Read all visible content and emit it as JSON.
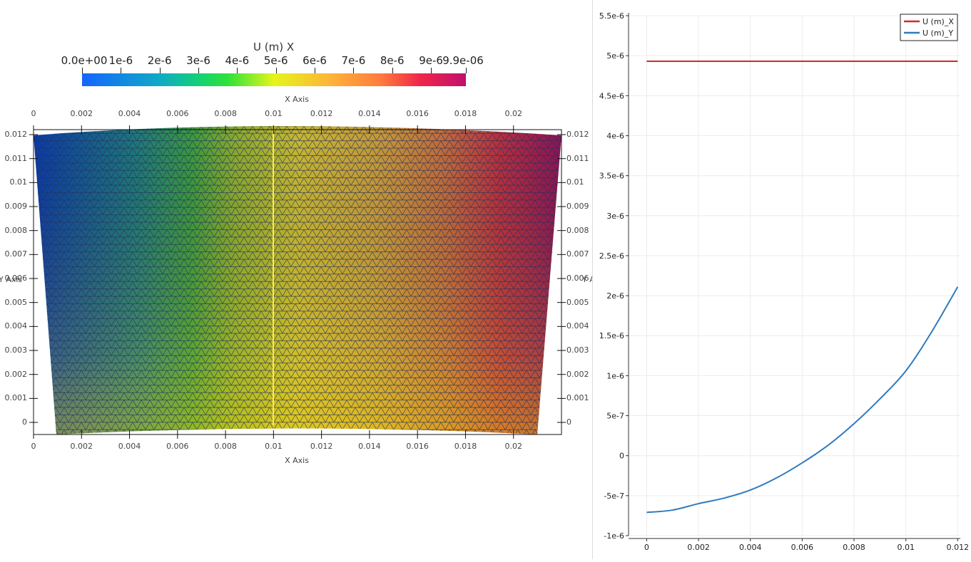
{
  "left_view": {
    "colorbar": {
      "title": "U (m) X",
      "tick_labels": [
        "0.0e+00",
        "1e-6",
        "2e-6",
        "3e-6",
        "4e-6",
        "5e-6",
        "6e-6",
        "7e-6",
        "8e-6",
        "9e-6",
        "9.9e-06"
      ],
      "colors": [
        "#1565ff",
        "#10a9c8",
        "#13d078",
        "#2ee23a",
        "#e5f51b",
        "#ffb13a",
        "#ff7a3c",
        "#f0264a",
        "#c0106e"
      ]
    },
    "x_axis_top_label": "X Axis",
    "x_axis_bottom_label": "X Axis",
    "y_axis_left_label": "Y Axis",
    "y_axis_right_label": "Y Axis",
    "x_ticks": [
      "0",
      "0.002",
      "0.004",
      "0.006",
      "0.008",
      "0.01",
      "0.012",
      "0.014",
      "0.016",
      "0.018",
      "0.02"
    ],
    "y_ticks": [
      "0",
      "0.001",
      "0.002",
      "0.003",
      "0.004",
      "0.005",
      "0.006",
      "0.007",
      "0.008",
      "0.009",
      "0.01",
      "0.011",
      "0.012"
    ]
  },
  "chart_data": {
    "type": "line",
    "x": [
      0,
      0.001,
      0.002,
      0.003,
      0.004,
      0.005,
      0.006,
      0.007,
      0.008,
      0.009,
      0.01,
      0.011,
      0.012
    ],
    "series": [
      {
        "name": "U (m)_X",
        "color": "#d62728",
        "values": [
          4.93e-06,
          4.93e-06,
          4.93e-06,
          4.93e-06,
          4.93e-06,
          4.93e-06,
          4.93e-06,
          4.93e-06,
          4.93e-06,
          4.93e-06,
          4.93e-06,
          4.93e-06,
          4.93e-06
        ]
      },
      {
        "name": "U (m)_Y",
        "color": "#2f7bbf",
        "values": [
          -7.1e-07,
          -6.8e-07,
          -6e-07,
          -5.3e-07,
          -4.3e-07,
          -2.8e-07,
          -9e-08,
          1.3e-07,
          4e-07,
          7.1e-07,
          1.06e-06,
          1.55e-06,
          2.11e-06
        ]
      }
    ],
    "x_ticks": [
      "0",
      "0.002",
      "0.004",
      "0.006",
      "0.008",
      "0.01",
      "0.012"
    ],
    "x_tick_values": [
      0,
      0.002,
      0.004,
      0.006,
      0.008,
      0.01,
      0.012
    ],
    "y_ticks": [
      "-1e-6",
      "-5e-7",
      "0",
      "5e-7",
      "1e-6",
      "1.5e-6",
      "2e-6",
      "2.5e-6",
      "3e-6",
      "3.5e-6",
      "4e-6",
      "4.5e-6",
      "5e-6",
      "5.5e-6"
    ],
    "y_tick_values": [
      -1e-06,
      -5e-07,
      0,
      5e-07,
      1e-06,
      1.5e-06,
      2e-06,
      2.5e-06,
      3e-06,
      3.5e-06,
      4e-06,
      4.5e-06,
      5e-06,
      5.5e-06
    ],
    "xlim": [
      -0.0007,
      0.0121
    ],
    "ylim": [
      -1e-06,
      5.5e-06
    ],
    "grid": true,
    "legend_position": "top-right",
    "title": "",
    "xlabel": "",
    "ylabel": ""
  }
}
